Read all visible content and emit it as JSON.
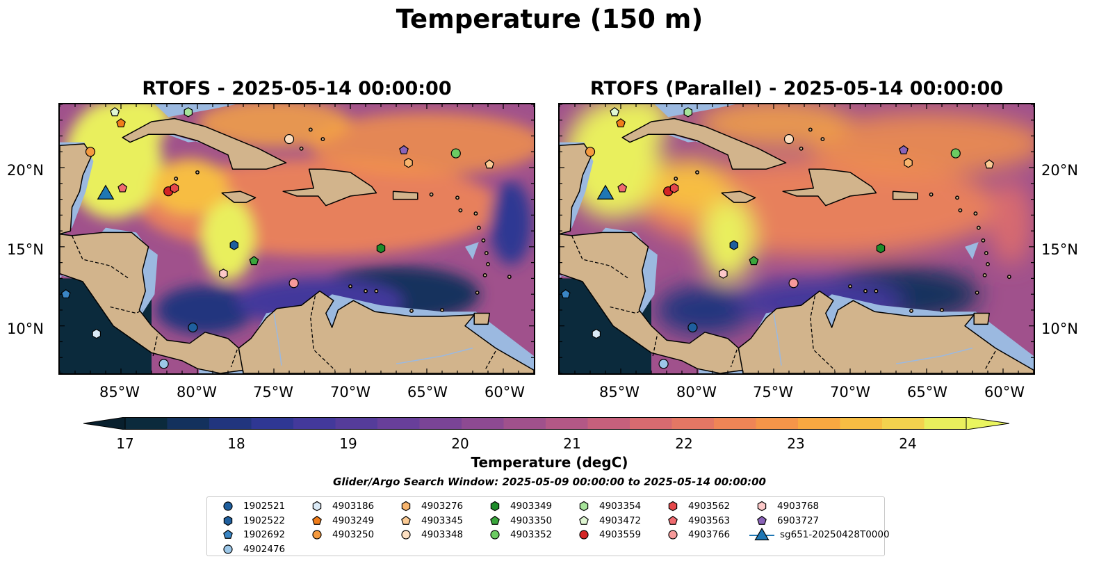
{
  "figure": {
    "title": "Temperature (150 m)",
    "panels": [
      {
        "title": "RTOFS - 2025-05-14 00:00:00"
      },
      {
        "title": "RTOFS (Parallel) - 2025-05-14 00:00:00"
      }
    ],
    "lat_labels": [
      "20°N",
      "15°N",
      "10°N"
    ],
    "lon_labels": [
      "85°W",
      "80°W",
      "75°W",
      "70°W",
      "65°W",
      "60°W"
    ],
    "map_extent": {
      "lon": [
        -89,
        -58
      ],
      "lat": [
        7,
        24
      ]
    }
  },
  "colorbar": {
    "label": "Temperature (degC)",
    "ticks": [
      "17",
      "18",
      "19",
      "20",
      "21",
      "22",
      "23",
      "24"
    ],
    "range": [
      17,
      24.5
    ],
    "colors": [
      "#0b2a3c",
      "#13315d",
      "#21357e",
      "#2f3793",
      "#43399b",
      "#553c9a",
      "#683f9a",
      "#7a4496",
      "#8d4a92",
      "#a0518c",
      "#b35886",
      "#c6607c",
      "#d76b70",
      "#e47764",
      "#ef8556",
      "#f59549",
      "#f8a841",
      "#f7bd43",
      "#f3d24e",
      "#e9ef5d"
    ],
    "low_color": "#081f2d",
    "high_color": "#eaf55f"
  },
  "search_window": "Glider/Argo Search Window: 2025-05-09 00:00:00 to 2025-05-14 00:00:00",
  "legend": [
    {
      "label": "1902521",
      "marker": "circle",
      "color": "#1f5f9e"
    },
    {
      "label": "1902522",
      "marker": "hexagon",
      "color": "#1f5f9e"
    },
    {
      "label": "1902692",
      "marker": "pentagon",
      "color": "#3a85c4"
    },
    {
      "label": "4902476",
      "marker": "circle",
      "color": "#9cc7e8"
    },
    {
      "label": "4903186",
      "marker": "hexagon",
      "color": "#dbeaf6"
    },
    {
      "label": "4903249",
      "marker": "pentagon",
      "color": "#f07d1a"
    },
    {
      "label": "4903250",
      "marker": "circle",
      "color": "#f59a3f"
    },
    {
      "label": "4903276",
      "marker": "hexagon",
      "color": "#f8b56e"
    },
    {
      "label": "4903345",
      "marker": "pentagon",
      "color": "#fbcb95"
    },
    {
      "label": "4903348",
      "marker": "circle",
      "color": "#fde0c2"
    },
    {
      "label": "4903349",
      "marker": "hexagon",
      "color": "#1e8c2a"
    },
    {
      "label": "4903350",
      "marker": "pentagon",
      "color": "#3aa63c"
    },
    {
      "label": "4903352",
      "marker": "circle",
      "color": "#6ccb62"
    },
    {
      "label": "4903354",
      "marker": "hexagon",
      "color": "#a6e49a"
    },
    {
      "label": "4903472",
      "marker": "pentagon",
      "color": "#dff6d2"
    },
    {
      "label": "4903559",
      "marker": "circle",
      "color": "#d42424"
    },
    {
      "label": "4903562",
      "marker": "hexagon",
      "color": "#e5474a"
    },
    {
      "label": "4903563",
      "marker": "pentagon",
      "color": "#f06a6f"
    },
    {
      "label": "4903766",
      "marker": "circle",
      "color": "#f79a9a"
    },
    {
      "label": "4903768",
      "marker": "hexagon",
      "color": "#fcc8c8"
    },
    {
      "label": "6903727",
      "marker": "pentagon",
      "color": "#8a63b8"
    },
    {
      "label": "sg651-20250428T0000",
      "marker": "triangle",
      "color": "#1f77b4"
    }
  ],
  "stations": [
    {
      "id": "1902521",
      "lon": -80.3,
      "lat": 9.9
    },
    {
      "id": "1902522",
      "lon": -77.6,
      "lat": 15.1
    },
    {
      "id": "1902692",
      "lon": -88.6,
      "lat": 12.0
    },
    {
      "id": "4902476",
      "lon": -82.2,
      "lat": 7.6
    },
    {
      "id": "4903186",
      "lon": -86.6,
      "lat": 9.5
    },
    {
      "id": "4903249",
      "lon": -85.0,
      "lat": 22.8
    },
    {
      "id": "4903250",
      "lon": -87.0,
      "lat": 21.0
    },
    {
      "id": "4903276",
      "lon": -66.2,
      "lat": 20.3
    },
    {
      "id": "4903345",
      "lon": -60.9,
      "lat": 20.2
    },
    {
      "id": "4903348",
      "lon": -74.0,
      "lat": 21.8
    },
    {
      "id": "4903349",
      "lon": -68.0,
      "lat": 14.9
    },
    {
      "id": "4903350",
      "lon": -76.3,
      "lat": 14.1
    },
    {
      "id": "4903352",
      "lon": -63.1,
      "lat": 20.9
    },
    {
      "id": "4903354",
      "lon": -80.6,
      "lat": 23.5
    },
    {
      "id": "4903472",
      "lon": -85.4,
      "lat": 23.5
    },
    {
      "id": "4903559",
      "lon": -81.9,
      "lat": 18.5
    },
    {
      "id": "4903562",
      "lon": -81.5,
      "lat": 18.7
    },
    {
      "id": "4903563",
      "lon": -84.9,
      "lat": 18.7
    },
    {
      "id": "4903766",
      "lon": -73.7,
      "lat": 12.7
    },
    {
      "id": "4903768",
      "lon": -78.3,
      "lat": 13.3
    },
    {
      "id": "6903727",
      "lon": -66.5,
      "lat": 21.1
    },
    {
      "id": "sg651-20250428T0000",
      "lon": -86.0,
      "lat": 18.3
    }
  ]
}
